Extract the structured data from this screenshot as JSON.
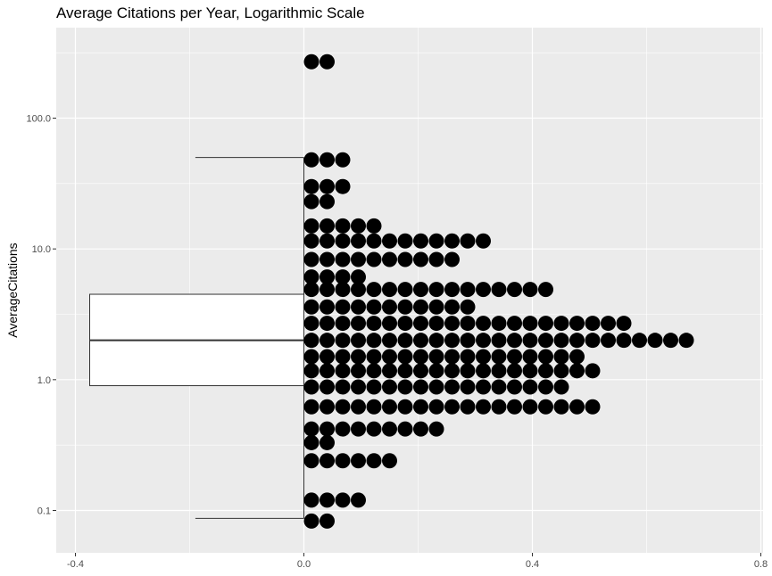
{
  "chart_data": {
    "type": "boxplot-dotplot",
    "title": "Average Citations per Year, Logarithmic Scale",
    "xlabel": "",
    "ylabel": "AverageCitations",
    "y_scale": "log10",
    "xlim": [
      -0.4,
      0.8
    ],
    "ylim": [
      0.06,
      400
    ],
    "x_ticks": [
      -0.4,
      0.0,
      0.4,
      0.8
    ],
    "x_tick_labels": [
      "-0.4",
      "0.0",
      "0.4",
      "0.8"
    ],
    "y_ticks": [
      0.1,
      1.0,
      10.0,
      100.0
    ],
    "y_tick_labels": [
      "0.1",
      "1.0",
      "10.0",
      "100.0"
    ],
    "grid": true,
    "background": "#ebebeb",
    "boxplot": {
      "x_left": -0.375,
      "x_right": 0.0,
      "whisker_x_left": -0.19,
      "lower_whisker": 0.087,
      "q1": 0.9,
      "median": 2.0,
      "q3": 4.5,
      "upper_whisker": 50,
      "outliers": [
        270
      ]
    },
    "dots": [
      {
        "y": 270,
        "count": 2
      },
      {
        "y": 48,
        "count": 3
      },
      {
        "y": 30,
        "count": 3
      },
      {
        "y": 23,
        "count": 2
      },
      {
        "y": 15,
        "count": 5
      },
      {
        "y": 11.5,
        "count": 12
      },
      {
        "y": 8.3,
        "count": 10
      },
      {
        "y": 6.1,
        "count": 4
      },
      {
        "y": 4.9,
        "count": 16
      },
      {
        "y": 3.6,
        "count": 11
      },
      {
        "y": 2.7,
        "count": 21
      },
      {
        "y": 2.0,
        "count": 25
      },
      {
        "y": 1.5,
        "count": 18
      },
      {
        "y": 1.17,
        "count": 19
      },
      {
        "y": 0.88,
        "count": 17
      },
      {
        "y": 0.62,
        "count": 19
      },
      {
        "y": 0.42,
        "count": 9
      },
      {
        "y": 0.33,
        "count": 2
      },
      {
        "y": 0.24,
        "count": 6
      },
      {
        "y": 0.12,
        "count": 4
      },
      {
        "y": 0.083,
        "count": 2
      }
    ]
  }
}
